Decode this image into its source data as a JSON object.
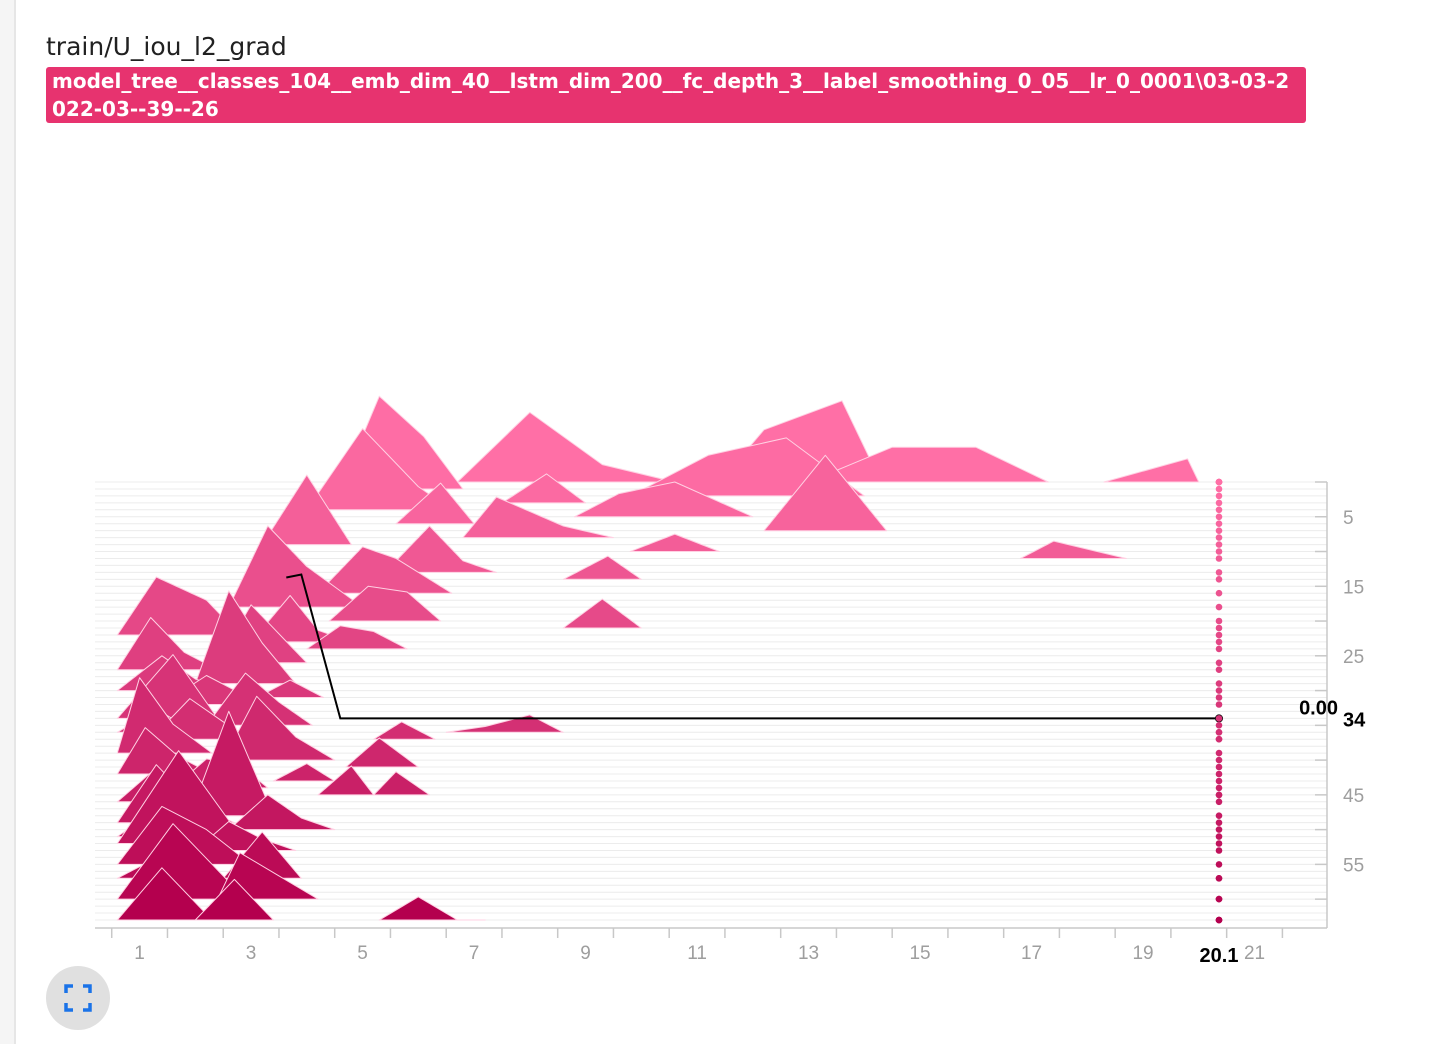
{
  "card": {
    "title": "train/U_iou_l2_grad",
    "run_tag": "model_tree__classes_104__emb_dim_40__lstm_dim_200__fc_depth_3__label_smoothing_0_05__lr_0_0001\\03-03-2022-03--39--26",
    "fullscreen_icon": "fullscreen-icon"
  },
  "chart_data": {
    "type": "histogram-offset",
    "title": "train/U_iou_l2_grad",
    "xaxis": {
      "min": 0.2,
      "max": 22.3,
      "ticks": [
        1,
        3,
        5,
        7,
        9,
        11,
        13,
        15,
        17,
        19,
        21
      ]
    },
    "yaxis": {
      "label": "step",
      "min": 0,
      "max": 63,
      "ticks": [
        5,
        15,
        25,
        34,
        45,
        55
      ]
    },
    "hover": {
      "x_label": "20.1",
      "step_label": "34",
      "value_label": "0.00"
    },
    "colors": {
      "far": "#ff6fa6",
      "near": "#b4004e",
      "guide": "#000000"
    },
    "guide_line": [
      [
        3.9,
        13.3
      ],
      [
        4.6,
        34
      ]
    ],
    "series": [
      {
        "step": 0,
        "points": [
          [
            6.7,
            0
          ],
          [
            8.0,
            12
          ],
          [
            9.3,
            3
          ],
          [
            10.6,
            0
          ]
        ]
      },
      {
        "step": 0,
        "points": [
          [
            11.4,
            0
          ],
          [
            12.2,
            9
          ],
          [
            13.6,
            14
          ],
          [
            14.3,
            0
          ]
        ]
      },
      {
        "step": 0,
        "points": [
          [
            13.0,
            0
          ],
          [
            14.5,
            6
          ],
          [
            16.0,
            6
          ],
          [
            17.3,
            0
          ]
        ]
      },
      {
        "step": 0,
        "points": [
          [
            18.3,
            0
          ],
          [
            19.8,
            4
          ],
          [
            20.0,
            0
          ]
        ]
      },
      {
        "step": 1,
        "points": [
          [
            4.6,
            0
          ],
          [
            5.3,
            16
          ],
          [
            6.1,
            9
          ],
          [
            6.8,
            0
          ]
        ]
      },
      {
        "step": 2,
        "points": [
          [
            9.8,
            0
          ],
          [
            11.2,
            7
          ],
          [
            12.6,
            10
          ],
          [
            14.0,
            0
          ]
        ]
      },
      {
        "step": 3,
        "points": [
          [
            7.5,
            0
          ],
          [
            8.3,
            5
          ],
          [
            9.0,
            0
          ]
        ]
      },
      {
        "step": 4,
        "points": [
          [
            4.0,
            0
          ],
          [
            5.0,
            14
          ],
          [
            6.0,
            4
          ],
          [
            6.6,
            0
          ]
        ]
      },
      {
        "step": 5,
        "points": [
          [
            8.8,
            0
          ],
          [
            9.6,
            4
          ],
          [
            10.6,
            6
          ],
          [
            12.0,
            0
          ]
        ]
      },
      {
        "step": 6,
        "points": [
          [
            5.6,
            0
          ],
          [
            6.4,
            7
          ],
          [
            7.0,
            0
          ]
        ]
      },
      {
        "step": 7,
        "points": [
          [
            12.2,
            0
          ],
          [
            13.3,
            13
          ],
          [
            14.4,
            0
          ]
        ]
      },
      {
        "step": 8,
        "points": [
          [
            6.8,
            0
          ],
          [
            7.4,
            7
          ],
          [
            8.6,
            2
          ],
          [
            9.5,
            0
          ]
        ]
      },
      {
        "step": 9,
        "points": [
          [
            3.2,
            0
          ],
          [
            4.0,
            12
          ],
          [
            4.8,
            0
          ]
        ]
      },
      {
        "step": 10,
        "points": [
          [
            9.8,
            0
          ],
          [
            10.6,
            3
          ],
          [
            11.4,
            0
          ]
        ]
      },
      {
        "step": 11,
        "points": [
          [
            16.8,
            0
          ],
          [
            17.4,
            3
          ],
          [
            18.7,
            0
          ]
        ]
      },
      {
        "step": 13,
        "points": [
          [
            5.4,
            0
          ],
          [
            6.2,
            8
          ],
          [
            6.8,
            2
          ],
          [
            7.4,
            0
          ]
        ]
      },
      {
        "step": 14,
        "points": [
          [
            8.6,
            0
          ],
          [
            9.4,
            4
          ],
          [
            10.0,
            0
          ]
        ]
      },
      {
        "step": 16,
        "points": [
          [
            4.2,
            0
          ],
          [
            5.0,
            8
          ],
          [
            5.6,
            6
          ],
          [
            6.6,
            0
          ]
        ]
      },
      {
        "step": 18,
        "points": [
          [
            2.6,
            0
          ],
          [
            3.3,
            14
          ],
          [
            4.0,
            7
          ],
          [
            5.0,
            0
          ]
        ]
      },
      {
        "step": 20,
        "points": [
          [
            4.4,
            0
          ],
          [
            5.1,
            6
          ],
          [
            5.8,
            5
          ],
          [
            6.4,
            0
          ]
        ]
      },
      {
        "step": 21,
        "points": [
          [
            8.6,
            0
          ],
          [
            9.3,
            5
          ],
          [
            10.0,
            0
          ]
        ]
      },
      {
        "step": 22,
        "points": [
          [
            0.6,
            0
          ],
          [
            1.3,
            10
          ],
          [
            2.2,
            6
          ],
          [
            2.8,
            0
          ]
        ]
      },
      {
        "step": 23,
        "points": [
          [
            3.0,
            0
          ],
          [
            3.7,
            8
          ],
          [
            4.2,
            2
          ],
          [
            4.8,
            0
          ]
        ]
      },
      {
        "step": 24,
        "points": [
          [
            4.0,
            0
          ],
          [
            4.6,
            4
          ],
          [
            5.2,
            3
          ],
          [
            5.8,
            0
          ]
        ]
      },
      {
        "step": 26,
        "points": [
          [
            2.4,
            0
          ],
          [
            3.0,
            10
          ],
          [
            3.6,
            4
          ],
          [
            4.0,
            0
          ]
        ]
      },
      {
        "step": 27,
        "points": [
          [
            0.6,
            0
          ],
          [
            1.2,
            9
          ],
          [
            1.8,
            3
          ],
          [
            2.4,
            0
          ]
        ]
      },
      {
        "step": 29,
        "points": [
          [
            2.0,
            0
          ],
          [
            2.6,
            16
          ],
          [
            3.2,
            7
          ],
          [
            3.8,
            0
          ]
        ]
      },
      {
        "step": 30,
        "points": [
          [
            0.6,
            0
          ],
          [
            1.4,
            6
          ],
          [
            2.0,
            2
          ],
          [
            2.6,
            0
          ]
        ]
      },
      {
        "step": 31,
        "points": [
          [
            3.1,
            0
          ],
          [
            3.7,
            3
          ],
          [
            4.3,
            0
          ]
        ]
      },
      {
        "step": 32,
        "points": [
          [
            1.4,
            0
          ],
          [
            2.2,
            5
          ],
          [
            2.8,
            2
          ],
          [
            3.4,
            0
          ]
        ]
      },
      {
        "step": 34,
        "points": [
          [
            0.6,
            0
          ],
          [
            1.6,
            11
          ],
          [
            2.4,
            0
          ]
        ]
      },
      {
        "step": 35,
        "points": [
          [
            2.2,
            0
          ],
          [
            2.9,
            9
          ],
          [
            3.5,
            4
          ],
          [
            4.1,
            0
          ]
        ]
      },
      {
        "step": 36,
        "points": [
          [
            0.6,
            0
          ],
          [
            1.3,
            4
          ],
          [
            2.0,
            0
          ]
        ]
      },
      {
        "step": 36,
        "points": [
          [
            6.5,
            0
          ],
          [
            7.2,
            1
          ],
          [
            8.0,
            3
          ],
          [
            8.6,
            0
          ]
        ]
      },
      {
        "step": 37,
        "points": [
          [
            1.2,
            0
          ],
          [
            1.9,
            7
          ],
          [
            2.5,
            3
          ],
          [
            3.0,
            0
          ]
        ]
      },
      {
        "step": 37,
        "points": [
          [
            5.2,
            0
          ],
          [
            5.7,
            3
          ],
          [
            6.3,
            0
          ]
        ]
      },
      {
        "step": 39,
        "points": [
          [
            0.6,
            0
          ],
          [
            1.0,
            13
          ],
          [
            1.6,
            5
          ],
          [
            2.3,
            0
          ]
        ]
      },
      {
        "step": 40,
        "points": [
          [
            2.5,
            0
          ],
          [
            3.1,
            11
          ],
          [
            3.8,
            4
          ],
          [
            4.5,
            0
          ]
        ]
      },
      {
        "step": 41,
        "points": [
          [
            4.7,
            0
          ],
          [
            5.3,
            5
          ],
          [
            6.0,
            0
          ]
        ]
      },
      {
        "step": 42,
        "points": [
          [
            0.6,
            0
          ],
          [
            1.1,
            8
          ],
          [
            1.7,
            3
          ],
          [
            2.3,
            0
          ]
        ]
      },
      {
        "step": 43,
        "points": [
          [
            3.4,
            0
          ],
          [
            4.0,
            3
          ],
          [
            4.5,
            0
          ]
        ]
      },
      {
        "step": 44,
        "points": [
          [
            1.6,
            0
          ],
          [
            2.2,
            5
          ],
          [
            2.8,
            4
          ],
          [
            3.3,
            0
          ]
        ]
      },
      {
        "step": 45,
        "points": [
          [
            4.2,
            0
          ],
          [
            4.8,
            5
          ],
          [
            5.2,
            0
          ]
        ]
      },
      {
        "step": 45,
        "points": [
          [
            5.2,
            0
          ],
          [
            5.6,
            4
          ],
          [
            6.2,
            0
          ]
        ]
      },
      {
        "step": 46,
        "points": [
          [
            0.6,
            0
          ],
          [
            1.2,
            5
          ],
          [
            1.9,
            0
          ]
        ]
      },
      {
        "step": 48,
        "points": [
          [
            1.9,
            0
          ],
          [
            2.6,
            18
          ],
          [
            3.4,
            0
          ]
        ]
      },
      {
        "step": 49,
        "points": [
          [
            0.6,
            0
          ],
          [
            1.3,
            10
          ],
          [
            2.0,
            3
          ],
          [
            2.7,
            0
          ]
        ]
      },
      {
        "step": 50,
        "points": [
          [
            2.6,
            0
          ],
          [
            3.3,
            6
          ],
          [
            3.9,
            2
          ],
          [
            4.5,
            0
          ]
        ]
      },
      {
        "step": 51,
        "points": [
          [
            0.6,
            0
          ],
          [
            1.2,
            4
          ],
          [
            1.8,
            0
          ]
        ]
      },
      {
        "step": 52,
        "points": [
          [
            0.6,
            0
          ],
          [
            1.7,
            16
          ],
          [
            2.9,
            0
          ]
        ]
      },
      {
        "step": 53,
        "points": [
          [
            2.0,
            0
          ],
          [
            2.6,
            5
          ],
          [
            3.2,
            2
          ],
          [
            3.8,
            0
          ]
        ]
      },
      {
        "step": 55,
        "points": [
          [
            0.6,
            0
          ],
          [
            1.4,
            10
          ],
          [
            2.2,
            6
          ],
          [
            3.0,
            0
          ]
        ]
      },
      {
        "step": 57,
        "points": [
          [
            2.5,
            0
          ],
          [
            3.2,
            8
          ],
          [
            3.9,
            0
          ]
        ]
      },
      {
        "step": 57,
        "points": [
          [
            0.6,
            0
          ],
          [
            1.2,
            3
          ],
          [
            1.8,
            0
          ]
        ]
      },
      {
        "step": 60,
        "points": [
          [
            0.6,
            0
          ],
          [
            1.6,
            13
          ],
          [
            2.9,
            0
          ]
        ]
      },
      {
        "step": 60,
        "points": [
          [
            2.4,
            0
          ],
          [
            2.8,
            8
          ],
          [
            3.5,
            4
          ],
          [
            4.2,
            0
          ]
        ]
      },
      {
        "step": 63,
        "points": [
          [
            0.6,
            0
          ],
          [
            1.4,
            9
          ],
          [
            2.3,
            0
          ]
        ]
      },
      {
        "step": 63,
        "points": [
          [
            2.0,
            0
          ],
          [
            2.7,
            7
          ],
          [
            3.4,
            0
          ]
        ]
      },
      {
        "step": 63,
        "points": [
          [
            5.3,
            0
          ],
          [
            6.0,
            4
          ],
          [
            6.7,
            0
          ],
          [
            7.2,
            0
          ]
        ]
      }
    ]
  }
}
